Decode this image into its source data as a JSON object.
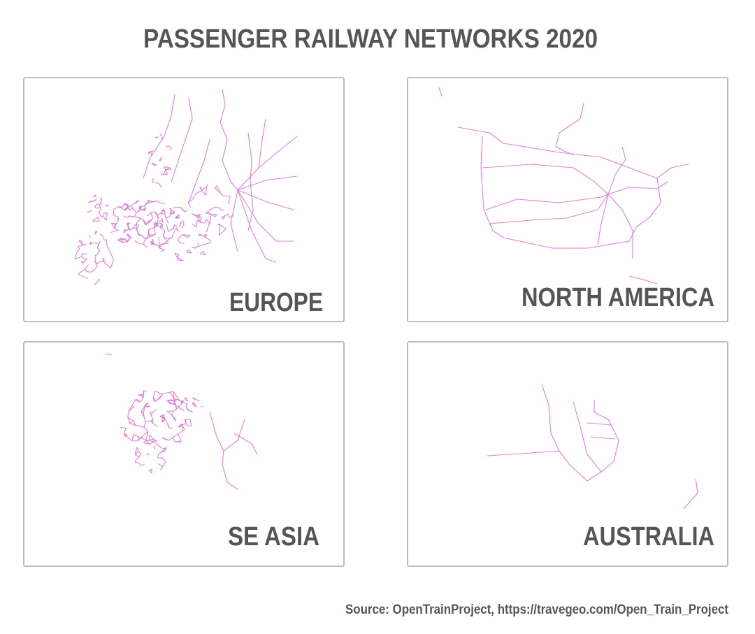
{
  "title": "PASSENGER RAILWAY NETWORKS 2020",
  "panels": [
    {
      "label": "EUROPE"
    },
    {
      "label": "NORTH AMERICA"
    },
    {
      "label": "SE ASIA"
    },
    {
      "label": "AUSTRALIA"
    }
  ],
  "source": "Source: OpenTrainProject, https://travegeo.com/Open_Train_Project"
}
